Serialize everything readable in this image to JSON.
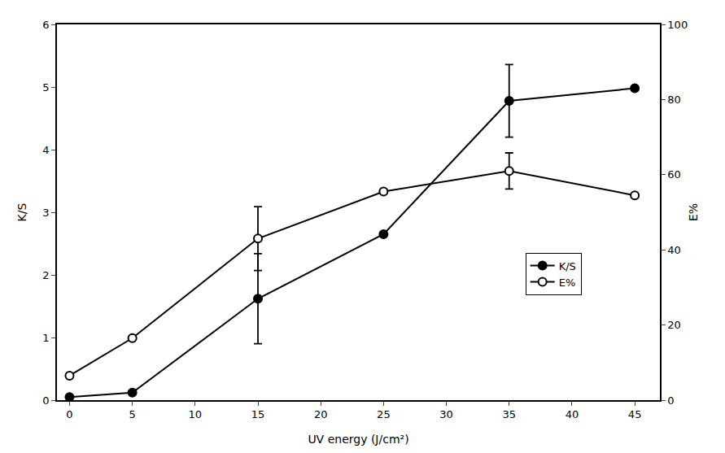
{
  "chart_data": {
    "type": "line",
    "xlabel": "UV energy (J/cm²)",
    "ylabel": "K/S",
    "y2label": "E%",
    "x": [
      0,
      5,
      15,
      25,
      35,
      45
    ],
    "series": [
      {
        "name": "K/S",
        "color": "#000000",
        "marker": "filled",
        "values": [
          0.05,
          0.12,
          1.62,
          2.65,
          4.78,
          4.98
        ],
        "error": [
          0.0,
          0.0,
          0.72,
          0.0,
          0.58,
          0.0
        ]
      },
      {
        "name": "E%",
        "color": "#000000",
        "marker": "open",
        "axis": "y2",
        "values": [
          6.5,
          16.5,
          43.0,
          55.5,
          61.0,
          54.5
        ],
        "error": [
          0.0,
          0.0,
          8.5,
          0.0,
          4.8,
          0.0
        ]
      }
    ],
    "xlim": [
      -1,
      47
    ],
    "xticks": [
      0,
      5,
      10,
      15,
      20,
      25,
      30,
      35,
      40,
      45
    ],
    "ylim": [
      0,
      6
    ],
    "yticks": [
      0,
      1,
      2,
      3,
      4,
      5,
      6
    ],
    "y2lim": [
      0,
      100
    ],
    "y2ticks": [
      0,
      20,
      40,
      60,
      80,
      100
    ],
    "grid": false,
    "legend": "lower right"
  }
}
